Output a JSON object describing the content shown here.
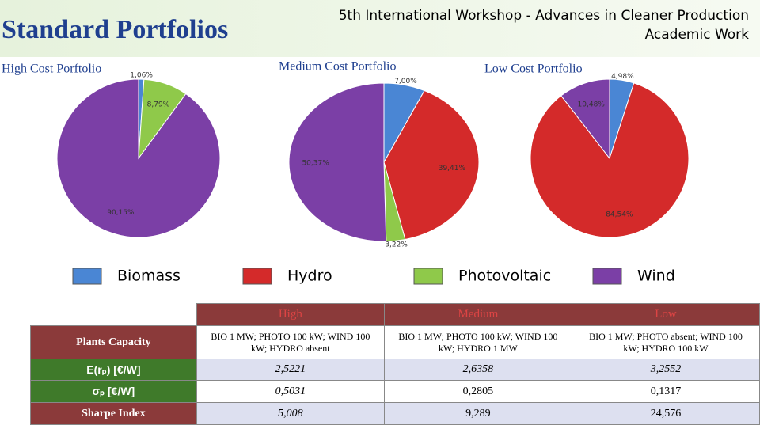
{
  "header": {
    "title": "Standard Portfolios",
    "workshop_line1": "5th International Workshop - Advances in Cleaner Production",
    "workshop_line2": "Academic Work"
  },
  "legend": {
    "names": [
      "Biomass",
      "Hydro",
      "Photovoltaic",
      "Wind"
    ],
    "colors": [
      "#4a86d4",
      "#d42a2a",
      "#8fc94a",
      "#7b3fa6"
    ]
  },
  "chart_data": [
    {
      "type": "pie",
      "title": "High Cost Porftolio",
      "values": [
        1.06,
        null,
        8.79,
        90.15
      ],
      "value_labels": [
        "1,06%",
        null,
        "8,79%",
        "90,15%"
      ]
    },
    {
      "type": "pie",
      "title": "Medium Cost Portfolio",
      "values": [
        7.0,
        39.41,
        3.22,
        50.37
      ],
      "value_labels": [
        "7,00%",
        "39,41%",
        "3,22%",
        "50,37%"
      ]
    },
    {
      "type": "pie",
      "title": "Low Cost Portfolio",
      "values": [
        4.98,
        84.54,
        null,
        10.48
      ],
      "value_labels": [
        "4,98%",
        "84,54%",
        null,
        "10,48%"
      ]
    }
  ],
  "table": {
    "columns": [
      "High",
      "Medium",
      "Low"
    ],
    "rows": [
      {
        "label": "Plants Capacity",
        "cells": [
          "BIO  1 MW; PHOTO 100 kW; WIND 100 kW; HYDRO absent",
          "BIO 1 MW; PHOTO 100 kW; WIND 100 kW; HYDRO 1 MW",
          "BIO 1 MW; PHOTO absent; WIND 100 kW; HYDRO 100 kW"
        ]
      },
      {
        "label": "E(rₚ) [€/W]",
        "cells": [
          "2,5221",
          "2,6358",
          "3,2552"
        ]
      },
      {
        "label": "σₚ [€/W]",
        "cells": [
          "0,5031",
          "0,2805",
          "0,1317"
        ]
      },
      {
        "label": "Sharpe Index",
        "cells": [
          "5,008",
          "9,289",
          "24,576"
        ]
      }
    ]
  }
}
